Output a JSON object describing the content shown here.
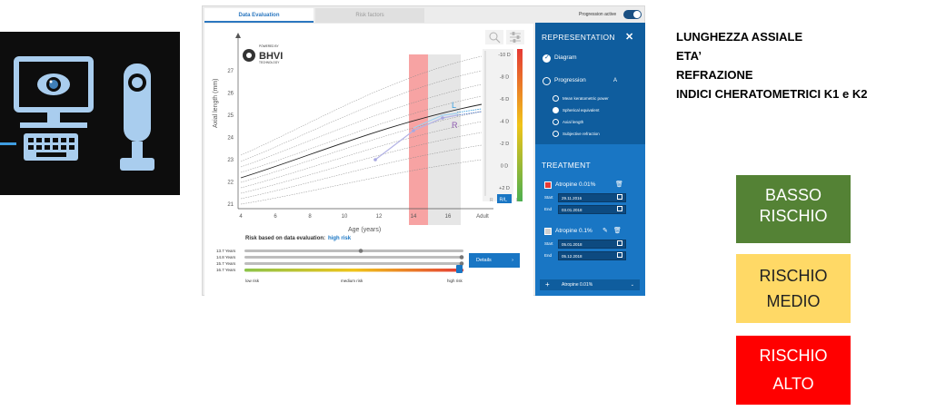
{
  "app": {
    "tabs": {
      "data_evaluation": "Data Evaluation",
      "risk_factors": "Risk factors"
    },
    "progression_toggle": {
      "label": "Progression active",
      "on": true
    },
    "chart": {
      "logo": {
        "powered_by": "POWERED BY",
        "brand": "BHVI",
        "tagline": "TECHNOLOGY"
      },
      "ylabel": "Axial length (mm)",
      "xlabel": "Age (years)",
      "y_ticks": [
        "21",
        "22",
        "23",
        "24",
        "25",
        "26",
        "27"
      ],
      "x_ticks": [
        "4",
        "6",
        "8",
        "10",
        "12",
        "14",
        "16",
        "Adult"
      ],
      "diopter_ticks": [
        "-10 D",
        "-8 D",
        "-6 D",
        "-4 D",
        "-2 D",
        "0 D",
        "+2 D"
      ],
      "eye_labels": {
        "left": "L",
        "right": "R"
      },
      "view_buttons": {
        "r": "R",
        "rl": "R/L",
        "l": "L"
      },
      "risk_text_prefix": "Risk based on data evaluation:",
      "risk_value": "high risk"
    },
    "risk_slider": {
      "rows": [
        "13.7 Years",
        "14.8 Years",
        "15.7 Years",
        "16.7 Years"
      ],
      "labels": {
        "low": "low risk",
        "medium": "medium risk",
        "high": "high risk"
      }
    },
    "details_button": "Details",
    "sidebar": {
      "representation_title": "REPRESENTATION",
      "close": "✕",
      "diagram": "Diagram",
      "progression": "Progression",
      "progression_marker": "A",
      "options": [
        "Mean keratometric power",
        "Spherical equivalent",
        "Axial length",
        "Subjective refraction"
      ],
      "treatment_title": "TREATMENT",
      "treatments": [
        {
          "name": "Atropine 0.01%",
          "start": "29.11.2016",
          "end": "03.01.2018",
          "color": "#e53935"
        },
        {
          "name": "Atropine 0.1%",
          "start": "05.01.2018",
          "end": "05.12.2018",
          "color": "#cfcfcf"
        }
      ],
      "start_label": "Start",
      "end_label": "End",
      "add_treatment": "Atropine 0.01%"
    }
  },
  "indicators": [
    "LUNGHEZZA ASSIALE",
    "ETA’",
    "REFRAZIONE",
    "INDICI CHERATOMETRICI K1 e K2"
  ],
  "risk_boxes": {
    "low": [
      "BASSO",
      "RISCHIO"
    ],
    "medium": [
      "RISCHIO",
      "MEDIO"
    ],
    "high": [
      "RISCHIO",
      "ALTO"
    ]
  },
  "colors": {
    "low": "#548235",
    "medium": "#ffd966",
    "high": "#ff0000",
    "accent": "#1976c4"
  }
}
